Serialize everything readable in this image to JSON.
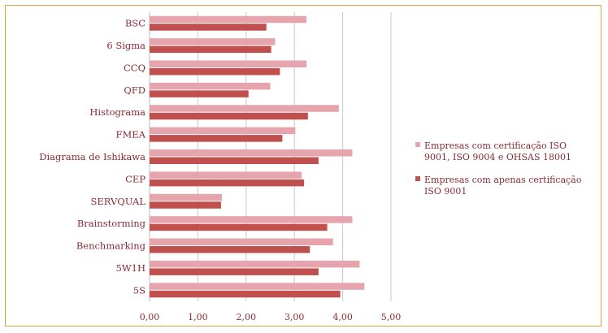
{
  "chart_data": {
    "type": "bar",
    "orientation": "horizontal",
    "categories": [
      "BSC",
      "6 Sigma",
      "CCQ",
      "QFD",
      "Histograma",
      "FMEA",
      "Diagrama de Ishikawa",
      "CEP",
      "SERVQUAL",
      "Brainstorming",
      "Benchmarking",
      "5W1H",
      "5S"
    ],
    "series": [
      {
        "name": "Empresas com certificação ISO 9001, ISO 9004 e OHSAS 18001",
        "color": "#e6a4ad",
        "values": [
          3.25,
          2.6,
          3.25,
          2.5,
          3.92,
          3.02,
          4.2,
          3.15,
          1.5,
          4.2,
          3.8,
          4.35,
          4.45
        ]
      },
      {
        "name": "Empresas com apenas certificação ISO 9001",
        "color": "#c0504d",
        "values": [
          2.42,
          2.52,
          2.7,
          2.05,
          3.28,
          2.75,
          3.5,
          3.2,
          1.48,
          3.68,
          3.32,
          3.5,
          3.95
        ]
      }
    ],
    "xlim": [
      0,
      5
    ],
    "xticks": [
      "0,00",
      "1,00",
      "2,00",
      "3,00",
      "4,00",
      "5,00"
    ],
    "grid": true,
    "legend": "right"
  }
}
